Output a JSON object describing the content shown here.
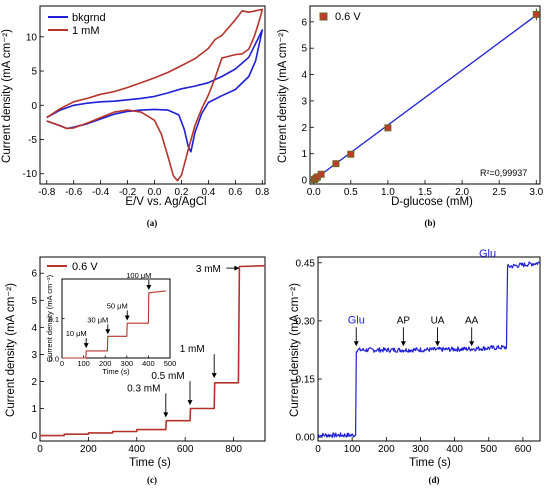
{
  "chart_data": [
    {
      "panel": "(a)",
      "type": "line",
      "xlabel": "E/V vs. Ag/AgCl",
      "ylabel": "Current density (mA cm⁻²)",
      "xlim": [
        -0.85,
        0.82
      ],
      "ylim": [
        -11.5,
        14.5
      ],
      "xticks": [
        "-0.8",
        "-0.6",
        "-0.4",
        "-0.2",
        "0.0",
        "0.2",
        "0.4",
        "0.6",
        "0.8"
      ],
      "xtick_values": [
        -0.8,
        -0.6,
        -0.4,
        -0.2,
        0.0,
        0.2,
        0.4,
        0.6,
        0.8
      ],
      "yticks": [
        "-10",
        "-5",
        "0",
        "5",
        "10"
      ],
      "ytick_values": [
        -10,
        -5,
        0,
        5,
        10
      ],
      "legend_position": "top-left",
      "series": [
        {
          "name": "bkgrnd",
          "color": "#1f1fd6",
          "x": [
            -0.8,
            -0.7,
            -0.6,
            -0.5,
            -0.4,
            -0.3,
            -0.2,
            -0.1,
            0.0,
            0.1,
            0.2,
            0.3,
            0.4,
            0.5,
            0.6,
            0.7,
            0.8,
            0.75,
            0.7,
            0.6,
            0.5,
            0.4,
            0.35,
            0.3,
            0.27,
            0.25,
            0.22,
            0.18,
            0.1,
            0.0,
            -0.1,
            -0.2,
            -0.3,
            -0.4,
            -0.5,
            -0.6,
            -0.65,
            -0.7,
            -0.8
          ],
          "y": [
            -1.8,
            -0.7,
            0.0,
            0.3,
            0.5,
            0.6,
            0.8,
            1.0,
            1.3,
            1.8,
            2.4,
            2.8,
            3.3,
            4.2,
            5.3,
            7.0,
            11.0,
            6.5,
            4.2,
            2.3,
            1.4,
            0.4,
            -1.2,
            -4.0,
            -6.8,
            -6.0,
            -3.5,
            -1.4,
            -0.7,
            -0.6,
            -0.7,
            -0.9,
            -1.3,
            -2.0,
            -2.7,
            -3.2,
            -3.4,
            -3.0,
            -2.3
          ]
        },
        {
          "name": "1 mM",
          "color": "#b5332a",
          "x": [
            -0.8,
            -0.7,
            -0.6,
            -0.5,
            -0.4,
            -0.3,
            -0.2,
            -0.1,
            0.0,
            0.1,
            0.2,
            0.3,
            0.4,
            0.45,
            0.5,
            0.6,
            0.65,
            0.7,
            0.75,
            0.8,
            0.78,
            0.74,
            0.7,
            0.65,
            0.6,
            0.5,
            0.45,
            0.4,
            0.35,
            0.3,
            0.25,
            0.2,
            0.17,
            0.14,
            0.1,
            0.05,
            0.0,
            -0.1,
            -0.2,
            -0.3,
            -0.4,
            -0.5,
            -0.6,
            -0.65,
            -0.7,
            -0.8
          ],
          "y": [
            -1.8,
            -0.5,
            0.5,
            1.0,
            1.6,
            2.0,
            2.6,
            3.3,
            4.0,
            4.8,
            5.8,
            6.8,
            8.3,
            9.6,
            10.2,
            12.5,
            13.8,
            13.6,
            13.8,
            14.0,
            12.5,
            10.0,
            8.2,
            7.5,
            7.4,
            6.9,
            4.0,
            1.5,
            -0.5,
            -3.0,
            -6.5,
            -10.2,
            -11.0,
            -10.3,
            -7.5,
            -4.2,
            -2.2,
            -1.0,
            -0.7,
            -1.0,
            -1.8,
            -2.6,
            -3.3,
            -3.4,
            -3.0,
            -2.3
          ]
        }
      ]
    },
    {
      "panel": "(b)",
      "type": "scatter",
      "xlabel": "D-glucose (mM)",
      "ylabel": "Current density (mA cm⁻²)",
      "xlim": [
        -0.05,
        3.05
      ],
      "ylim": [
        -0.15,
        6.6
      ],
      "xticks": [
        "0.0",
        "0.5",
        "1.0",
        "1.5",
        "2.0",
        "2.5",
        "3.0"
      ],
      "xtick_values": [
        0.0,
        0.5,
        1.0,
        1.5,
        2.0,
        2.5,
        3.0
      ],
      "yticks": [
        "0",
        "1",
        "2",
        "3",
        "4",
        "5",
        "6"
      ],
      "ytick_values": [
        0,
        1,
        2,
        3,
        4,
        5,
        6
      ],
      "legend_position": "top-left",
      "annotation": "R²=0,99937",
      "fit": {
        "x": [
          0.0,
          3.0
        ],
        "y": [
          0.0,
          6.25
        ],
        "color": "#1f1fd6"
      },
      "series": [
        {
          "name": "0.6 V",
          "color": "#c0392b",
          "edge_color": "#6b6b1f",
          "x": [
            0.01,
            0.03,
            0.05,
            0.1,
            0.3,
            0.5,
            1.0,
            3.0
          ],
          "y": [
            0.02,
            0.07,
            0.12,
            0.22,
            0.62,
            0.98,
            1.98,
            6.28
          ],
          "error": [
            0.02,
            0.02,
            0.02,
            0.03,
            0.04,
            0.05,
            0.06,
            0.22
          ]
        }
      ]
    },
    {
      "panel": "(c)",
      "type": "line",
      "xlabel": "Time (s)",
      "ylabel": "Current density (mA cm⁻²)",
      "xlim": [
        0,
        930
      ],
      "ylim": [
        -0.2,
        6.6
      ],
      "xticks": [
        "0",
        "200",
        "400",
        "600",
        "800"
      ],
      "xtick_values": [
        0,
        200,
        400,
        600,
        800
      ],
      "yticks": [
        "0",
        "1",
        "2",
        "3",
        "4",
        "5",
        "6"
      ],
      "ytick_values": [
        0,
        1,
        2,
        3,
        4,
        5,
        6
      ],
      "legend_position": "top-left",
      "series": [
        {
          "name": "0.6 V",
          "color": "#b5332a",
          "x": [
            0,
            100,
            100.5,
            200,
            200.5,
            300,
            300.5,
            400,
            400.5,
            520,
            522,
            620,
            622,
            720,
            722,
            820,
            824,
            930
          ],
          "y": [
            0.0,
            0.0,
            0.05,
            0.05,
            0.1,
            0.1,
            0.15,
            0.15,
            0.22,
            0.22,
            0.55,
            0.55,
            1.0,
            1.0,
            1.95,
            1.95,
            6.25,
            6.28
          ]
        }
      ],
      "annotations": [
        {
          "text": "0.3 mM",
          "x": 520,
          "y": 0.6
        },
        {
          "text": "0.5 mM",
          "x": 620,
          "y": 1.05
        },
        {
          "text": "1 mM",
          "x": 720,
          "y": 2.05
        },
        {
          "text": "3 mM",
          "x": 820,
          "y": 6.3
        }
      ],
      "inset": {
        "type": "line",
        "xlabel": "Time (s)",
        "ylabel": "Current density (mA cm⁻²)",
        "xlim": [
          0,
          500
        ],
        "ylim": [
          0.0,
          0.2
        ],
        "xticks": [
          "0",
          "100",
          "200",
          "300",
          "400",
          "500"
        ],
        "xtick_values": [
          0,
          100,
          200,
          300,
          400,
          500
        ],
        "yticks": [
          "0.0",
          "0.1"
        ],
        "ytick_values": [
          0.0,
          0.1
        ],
        "x": [
          0,
          110,
          112,
          210,
          212,
          300,
          302,
          400,
          402,
          480
        ],
        "y": [
          0.0,
          0.0,
          0.018,
          0.018,
          0.055,
          0.055,
          0.088,
          0.088,
          0.165,
          0.17
        ],
        "annotations": [
          {
            "text": "10 μM",
            "x": 112,
            "y": 0.025
          },
          {
            "text": "30 μM",
            "x": 212,
            "y": 0.06
          },
          {
            "text": "50 μM",
            "x": 302,
            "y": 0.095
          },
          {
            "text": "100 μM",
            "x": 402,
            "y": 0.172
          }
        ]
      }
    },
    {
      "panel": "(d)",
      "type": "line",
      "xlabel": "Time (s)",
      "ylabel": "Current density (mA cm⁻²)",
      "xlim": [
        0,
        650
      ],
      "ylim": [
        -0.01,
        0.465
      ],
      "xticks": [
        "0",
        "100",
        "200",
        "300",
        "400",
        "500",
        "600"
      ],
      "xtick_values": [
        0,
        100,
        200,
        300,
        400,
        500,
        600
      ],
      "yticks": [
        "0.00",
        "0.15",
        "0.30",
        "0.45"
      ],
      "ytick_values": [
        0.0,
        0.15,
        0.3,
        0.45
      ],
      "series": [
        {
          "name": "",
          "color": "#1f1fd6",
          "x": [
            0,
            110,
            112,
            250,
            350,
            450,
            552,
            555,
            650
          ],
          "y": [
            0.005,
            0.005,
            0.225,
            0.225,
            0.226,
            0.228,
            0.232,
            0.44,
            0.45
          ]
        }
      ],
      "annotations": [
        {
          "text": "Glu",
          "x": 112,
          "y": 0.232
        },
        {
          "text": "AP",
          "x": 250,
          "y": 0.232
        },
        {
          "text": "UA",
          "x": 350,
          "y": 0.232
        },
        {
          "text": "AA",
          "x": 450,
          "y": 0.232
        },
        {
          "text": "Glu",
          "x": 555,
          "y": 0.45
        }
      ]
    }
  ]
}
